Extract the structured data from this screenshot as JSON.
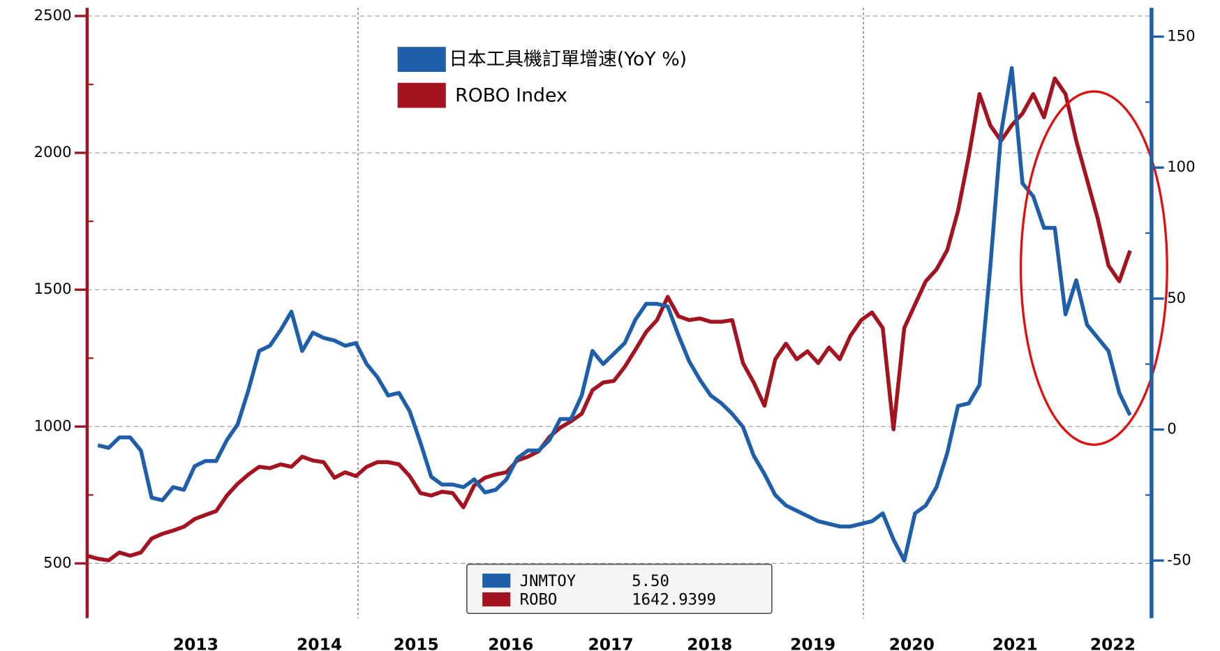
{
  "chart_data": {
    "type": "line",
    "legend_top": [
      "日本工具機訂單增速(YoY %)",
      "ROBO Index"
    ],
    "x": [
      2012.6,
      2012.7,
      2012.8,
      2012.9,
      2013.0,
      2013.1,
      2013.2,
      2013.3,
      2013.4,
      2013.5,
      2013.6,
      2013.7,
      2013.8,
      2013.9,
      2014.0,
      2014.1,
      2014.2,
      2014.3,
      2014.4,
      2014.5,
      2014.6,
      2014.7,
      2014.8,
      2014.9,
      2015.0,
      2015.1,
      2015.2,
      2015.3,
      2015.4,
      2015.5,
      2015.6,
      2015.7,
      2015.8,
      2015.9,
      2016.0,
      2016.1,
      2016.2,
      2016.3,
      2016.4,
      2016.5,
      2016.6,
      2016.7,
      2016.8,
      2016.9,
      2017.0,
      2017.1,
      2017.2,
      2017.3,
      2017.4,
      2017.5,
      2017.6,
      2017.7,
      2017.8,
      2017.9,
      2018.0,
      2018.1,
      2018.2,
      2018.3,
      2018.4,
      2018.5,
      2018.6,
      2018.7,
      2018.8,
      2018.9,
      2019.0,
      2019.1,
      2019.2,
      2019.3,
      2019.4,
      2019.5,
      2019.6,
      2019.7,
      2019.8,
      2019.9,
      2020.0,
      2020.1,
      2020.2,
      2020.3,
      2020.4,
      2020.5,
      2020.6,
      2020.7,
      2020.8,
      2020.9,
      2021.0,
      2021.1,
      2021.2,
      2021.3,
      2021.4,
      2021.5,
      2021.6,
      2021.7,
      2021.8,
      2021.9,
      2022.0,
      2022.1,
      2022.2,
      2022.3
    ],
    "series": [
      {
        "name": "JNMTOY",
        "last_label": "5.50",
        "color": "#1f5faa",
        "axis": "y2",
        "values": [
          null,
          -6,
          -7,
          -3,
          -3,
          -8,
          -26,
          -27,
          -22,
          -23,
          -14,
          -12,
          -12,
          -4,
          2,
          15,
          30,
          32,
          38,
          45,
          30,
          37,
          35,
          34,
          32,
          33,
          25,
          20,
          13,
          14,
          7,
          -5,
          -18,
          -21,
          -21,
          -22,
          -19,
          -24,
          -23,
          -19,
          -11,
          -8,
          -8,
          -4,
          4,
          4,
          13,
          30,
          25,
          29,
          33,
          42,
          48,
          48,
          47,
          36,
          26,
          19,
          13,
          10,
          6,
          1,
          -10,
          -17,
          -25,
          -29,
          -31,
          -33,
          -35,
          -36,
          -37,
          -37,
          -36,
          -35,
          -32,
          -42,
          -50,
          -32,
          -29,
          -22,
          -9,
          9,
          10,
          17,
          62,
          113,
          138,
          94,
          89,
          77,
          77,
          44,
          57,
          40,
          35,
          30,
          14,
          5.5
        ]
      },
      {
        "name": "ROBO",
        "last_label": "1642.9399",
        "color": "#a31420",
        "axis": "y",
        "values": [
          528,
          517,
          511,
          540,
          528,
          540,
          591,
          608,
          620,
          634,
          662,
          677,
          691,
          748,
          791,
          825,
          853,
          848,
          862,
          853,
          890,
          876,
          870,
          813,
          833,
          819,
          853,
          870,
          870,
          862,
          819,
          757,
          748,
          762,
          757,
          705,
          785,
          813,
          825,
          833,
          876,
          890,
          910,
          962,
          996,
          1019,
          1047,
          1133,
          1161,
          1167,
          1218,
          1281,
          1346,
          1389,
          1474,
          1403,
          1389,
          1395,
          1383,
          1383,
          1389,
          1232,
          1161,
          1076,
          1246,
          1303,
          1246,
          1275,
          1232,
          1289,
          1246,
          1332,
          1389,
          1417,
          1360,
          990,
          1360,
          1446,
          1531,
          1574,
          1645,
          1788,
          1987,
          2215,
          2101,
          2044,
          2101,
          2144,
          2215,
          2130,
          2272,
          2215,
          2044,
          1902,
          1759,
          1588,
          1531,
          1642.9399
        ]
      }
    ],
    "xlim": [
      2012.6,
      2022.5
    ],
    "xticks": [
      {
        "value": 2013.61,
        "label": "2013"
      },
      {
        "value": 2014.76,
        "label": "2014"
      },
      {
        "value": 2015.66,
        "label": "2015"
      },
      {
        "value": 2016.54,
        "label": "2016"
      },
      {
        "value": 2017.47,
        "label": "2017"
      },
      {
        "value": 2018.39,
        "label": "2018"
      },
      {
        "value": 2019.35,
        "label": "2019"
      },
      {
        "value": 2020.27,
        "label": "2020"
      },
      {
        "value": 2021.23,
        "label": "2021"
      },
      {
        "value": 2022.14,
        "label": "2022"
      }
    ],
    "xgrid_lines": [
      2015.12,
      2019.82
    ],
    "ylim": [
      300,
      2530
    ],
    "yticks": [
      500,
      1000,
      1500,
      2000,
      2500
    ],
    "yminor_ticks": [
      750,
      1250,
      1750,
      2250
    ],
    "y2lim": [
      -72,
      161
    ],
    "y2ticks": [
      -50,
      0,
      50,
      100,
      150
    ],
    "y2minor_ticks": [
      -25,
      25,
      75,
      125
    ],
    "grid": true
  }
}
